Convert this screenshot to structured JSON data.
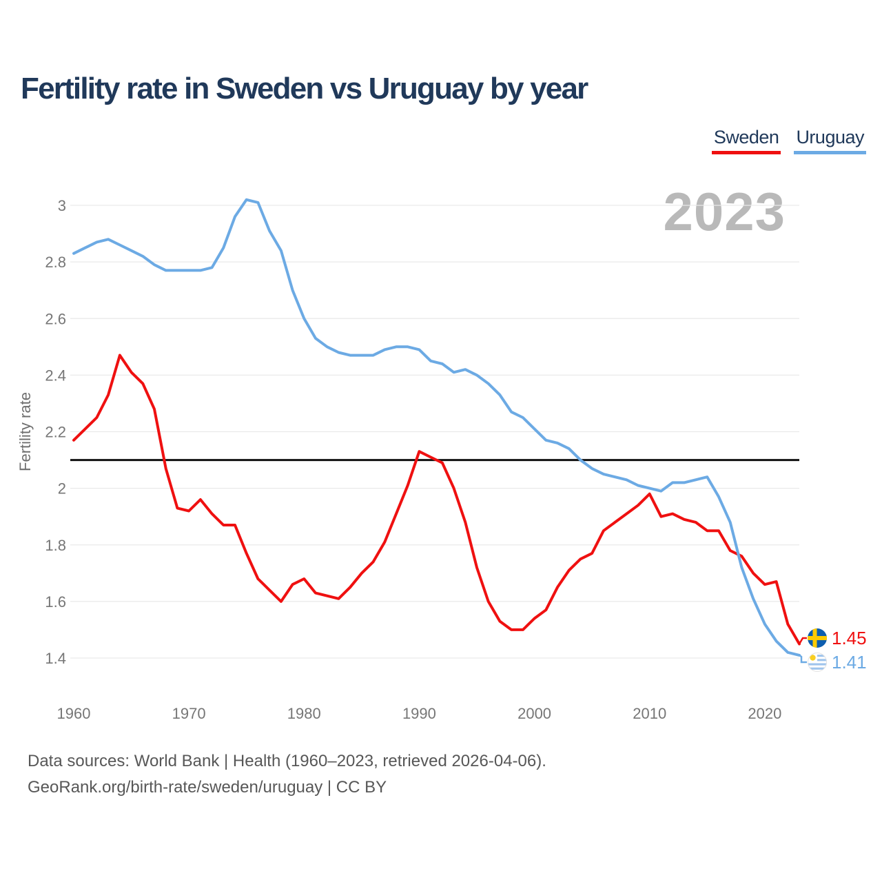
{
  "title": "Fertility rate in Sweden vs Uruguay by year",
  "watermark": "2023",
  "legend": [
    {
      "label": "Sweden",
      "color": "#ef1010"
    },
    {
      "label": "Uruguay",
      "color": "#6caae4"
    }
  ],
  "footer": {
    "line1": "Data sources: World Bank | Health (1960–2023, retrieved 2026-04-06).",
    "line2": "GeoRank.org/birth-rate/sweden/uruguay | CC BY"
  },
  "colors": {
    "title_text": "#20395a",
    "tick_text": "#767676",
    "grid_line": "#e9e9e9",
    "replacement_line": "#111111",
    "watermark_text": "#b9b9b9",
    "footer_text": "#575757"
  },
  "chart_data": {
    "type": "line",
    "title": "Fertility rate in Sweden vs Uruguay by year",
    "xlabel": "",
    "ylabel": "Fertility rate",
    "ylim": [
      1.4,
      3.0
    ],
    "yticks": [
      3,
      2.8,
      2.6,
      2.4,
      2.2,
      2,
      1.8,
      1.6,
      1.4
    ],
    "xticks": [
      1960,
      1970,
      1980,
      1990,
      2000,
      2010,
      2020
    ],
    "grid": "horizontal",
    "legend_position": "top-right",
    "reference_line": {
      "value": 2.1,
      "color": "#111111",
      "meaning": "replacement level"
    },
    "x": [
      1960,
      1961,
      1962,
      1963,
      1964,
      1965,
      1966,
      1967,
      1968,
      1969,
      1970,
      1971,
      1972,
      1973,
      1974,
      1975,
      1976,
      1977,
      1978,
      1979,
      1980,
      1981,
      1982,
      1983,
      1984,
      1985,
      1986,
      1987,
      1988,
      1989,
      1990,
      1991,
      1992,
      1993,
      1994,
      1995,
      1996,
      1997,
      1998,
      1999,
      2000,
      2001,
      2002,
      2003,
      2004,
      2005,
      2006,
      2007,
      2008,
      2009,
      2010,
      2011,
      2012,
      2013,
      2014,
      2015,
      2016,
      2017,
      2018,
      2019,
      2020,
      2021,
      2022,
      2023
    ],
    "series": [
      {
        "name": "Sweden",
        "color": "#ef1010",
        "end_label": "1.45",
        "values": [
          2.17,
          2.21,
          2.25,
          2.33,
          2.47,
          2.41,
          2.37,
          2.28,
          2.07,
          1.93,
          1.92,
          1.96,
          1.91,
          1.87,
          1.87,
          1.77,
          1.68,
          1.64,
          1.6,
          1.66,
          1.68,
          1.63,
          1.62,
          1.61,
          1.65,
          1.7,
          1.74,
          1.81,
          1.91,
          2.01,
          2.13,
          2.11,
          2.09,
          2.0,
          1.88,
          1.72,
          1.6,
          1.53,
          1.5,
          1.5,
          1.54,
          1.57,
          1.65,
          1.71,
          1.75,
          1.77,
          1.85,
          1.88,
          1.91,
          1.94,
          1.98,
          1.9,
          1.91,
          1.89,
          1.88,
          1.85,
          1.85,
          1.78,
          1.76,
          1.7,
          1.66,
          1.67,
          1.52,
          1.45
        ]
      },
      {
        "name": "Uruguay",
        "color": "#6caae4",
        "end_label": "1.41",
        "values": [
          2.83,
          2.85,
          2.87,
          2.88,
          2.86,
          2.84,
          2.82,
          2.79,
          2.77,
          2.77,
          2.77,
          2.77,
          2.78,
          2.85,
          2.96,
          3.02,
          3.01,
          2.91,
          2.84,
          2.7,
          2.6,
          2.53,
          2.5,
          2.48,
          2.47,
          2.47,
          2.47,
          2.49,
          2.5,
          2.5,
          2.49,
          2.45,
          2.44,
          2.41,
          2.42,
          2.4,
          2.37,
          2.33,
          2.27,
          2.25,
          2.21,
          2.17,
          2.16,
          2.14,
          2.1,
          2.07,
          2.05,
          2.04,
          2.03,
          2.01,
          2.0,
          1.99,
          2.02,
          2.02,
          2.03,
          2.04,
          1.97,
          1.88,
          1.72,
          1.61,
          1.52,
          1.46,
          1.42,
          1.41
        ]
      }
    ]
  }
}
